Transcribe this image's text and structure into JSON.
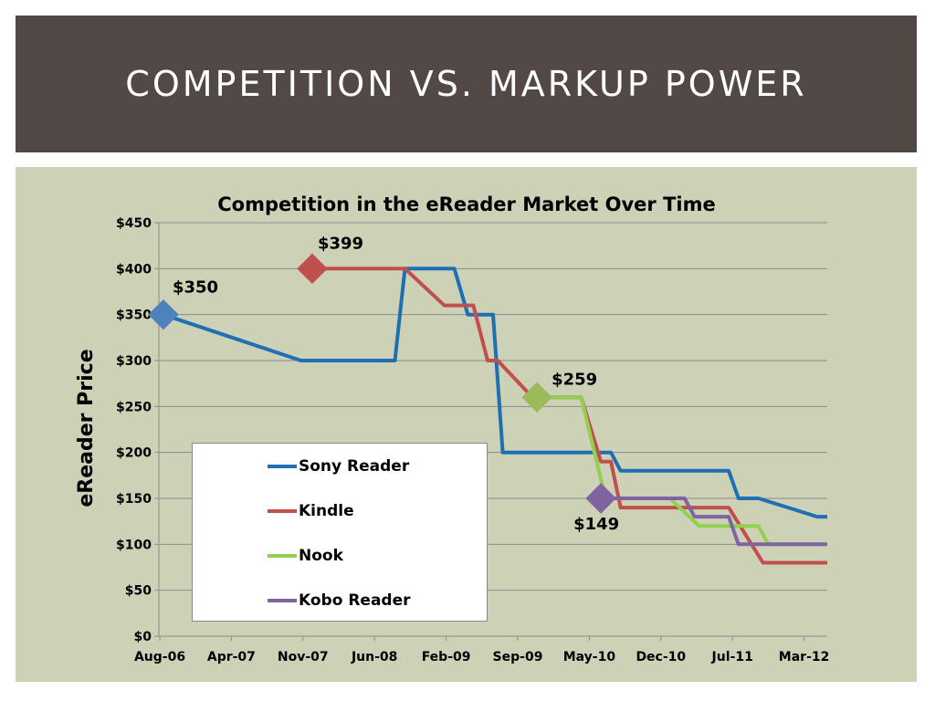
{
  "slide": {
    "title": "COMPETITION VS. MARKUP POWER"
  },
  "chart_data": {
    "type": "line",
    "title": "Competition in the eReader Market Over Time",
    "xlabel": "",
    "ylabel": "eReader Price",
    "x_ticks": [
      "Aug-06",
      "Apr-07",
      "Nov-07",
      "Jun-08",
      "Feb-09",
      "Sep-09",
      "May-10",
      "Dec-10",
      "Jul-11",
      "Mar-12"
    ],
    "y_ticks": [
      "$0",
      "$50",
      "$100",
      "$150",
      "$200",
      "$250",
      "$300",
      "$350",
      "$400",
      "$450"
    ],
    "xlim": [
      "2006-08",
      "2012-04"
    ],
    "ylim": [
      0,
      450
    ],
    "grid": "horizontal",
    "legend_position": "lower-left",
    "series": [
      {
        "name": "Sony Reader",
        "color": "#1f6fb4",
        "points": [
          [
            "2006-08-15",
            350
          ],
          [
            "2007-10-15",
            300
          ],
          [
            "2008-08-01",
            300
          ],
          [
            "2008-09-01",
            400
          ],
          [
            "2009-02-01",
            400
          ],
          [
            "2009-03-15",
            350
          ],
          [
            "2009-06-01",
            350
          ],
          [
            "2009-07-01",
            200
          ],
          [
            "2010-06-01",
            200
          ],
          [
            "2010-07-01",
            180
          ],
          [
            "2011-06-01",
            180
          ],
          [
            "2011-07-01",
            150
          ],
          [
            "2011-09-01",
            150
          ],
          [
            "2012-03-01",
            130
          ],
          [
            "2012-04-01",
            130
          ]
        ]
      },
      {
        "name": "Kindle",
        "color": "#c0504d",
        "points": [
          [
            "2007-11-19",
            400
          ],
          [
            "2008-09-01",
            400
          ],
          [
            "2009-01-01",
            360
          ],
          [
            "2009-04-01",
            360
          ],
          [
            "2009-05-15",
            300
          ],
          [
            "2009-06-15",
            300
          ],
          [
            "2009-10-01",
            260
          ],
          [
            "2010-03-01",
            260
          ],
          [
            "2010-05-01",
            190
          ],
          [
            "2010-06-01",
            190
          ],
          [
            "2010-07-01",
            140
          ],
          [
            "2011-03-01",
            140
          ],
          [
            "2011-04-01",
            140
          ],
          [
            "2011-06-01",
            140
          ],
          [
            "2011-09-15",
            80
          ],
          [
            "2012-04-01",
            80
          ]
        ]
      },
      {
        "name": "Nook",
        "color": "#92d050",
        "points": [
          [
            "2009-10-15",
            260
          ],
          [
            "2010-03-01",
            260
          ],
          [
            "2010-05-15",
            150
          ],
          [
            "2010-12-01",
            150
          ],
          [
            "2011-03-01",
            120
          ],
          [
            "2011-06-01",
            120
          ],
          [
            "2011-09-01",
            120
          ],
          [
            "2011-10-01",
            100
          ],
          [
            "2012-04-01",
            100
          ]
        ]
      },
      {
        "name": "Kobo Reader",
        "color": "#8064a2",
        "points": [
          [
            "2010-05-01",
            150
          ],
          [
            "2011-01-15",
            150
          ],
          [
            "2011-02-15",
            130
          ],
          [
            "2011-06-01",
            130
          ],
          [
            "2011-07-01",
            100
          ],
          [
            "2012-04-01",
            100
          ]
        ]
      }
    ],
    "markers": [
      {
        "series": "Sony Reader",
        "x": "2006-08-15",
        "y": 350,
        "label": "$350",
        "color": "#4f81bd"
      },
      {
        "series": "Kindle",
        "x": "2007-11-19",
        "y": 400,
        "label": "$399",
        "color": "#c0504d"
      },
      {
        "series": "Nook",
        "x": "2009-10-15",
        "y": 260,
        "label": "$259",
        "color": "#9bbb59"
      },
      {
        "series": "Kobo Reader",
        "x": "2010-05-01",
        "y": 150,
        "label": "$149",
        "color": "#8064a2"
      }
    ]
  }
}
